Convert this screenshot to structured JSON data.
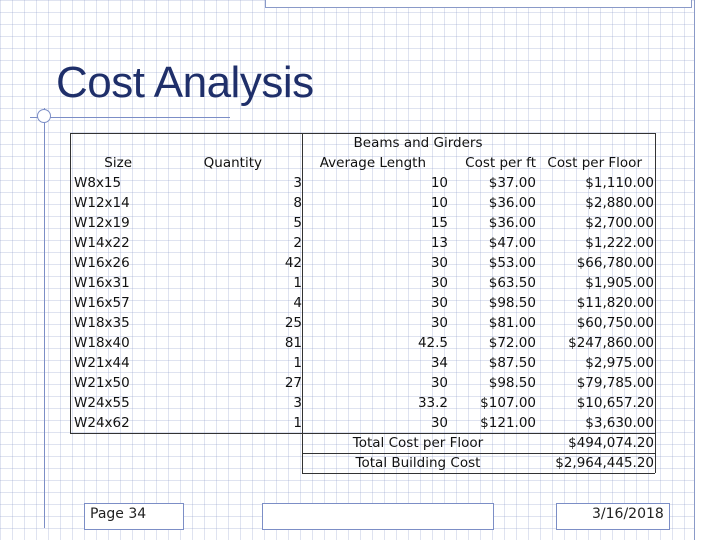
{
  "slide": {
    "title": "Cost Analysis",
    "page_label": "Page 34",
    "date": "3/16/2018"
  },
  "table": {
    "header": {
      "size": "Size",
      "quantity": "Quantity",
      "group": "Beams and Girders",
      "avg_length": "Average Length",
      "cost_per_ft": "Cost per ft",
      "cost_per_floor": "Cost per Floor"
    },
    "rows": [
      {
        "size": "W8x15",
        "qty": "3",
        "len": "10",
        "ft": "$37.00",
        "floor": "$1,110.00"
      },
      {
        "size": "W12x14",
        "qty": "8",
        "len": "10",
        "ft": "$36.00",
        "floor": "$2,880.00"
      },
      {
        "size": "W12x19",
        "qty": "5",
        "len": "15",
        "ft": "$36.00",
        "floor": "$2,700.00"
      },
      {
        "size": "W14x22",
        "qty": "2",
        "len": "13",
        "ft": "$47.00",
        "floor": "$1,222.00"
      },
      {
        "size": "W16x26",
        "qty": "42",
        "len": "30",
        "ft": "$53.00",
        "floor": "$66,780.00"
      },
      {
        "size": "W16x31",
        "qty": "1",
        "len": "30",
        "ft": "$63.50",
        "floor": "$1,905.00"
      },
      {
        "size": "W16x57",
        "qty": "4",
        "len": "30",
        "ft": "$98.50",
        "floor": "$11,820.00"
      },
      {
        "size": "W18x35",
        "qty": "25",
        "len": "30",
        "ft": "$81.00",
        "floor": "$60,750.00"
      },
      {
        "size": "W18x40",
        "qty": "81",
        "len": "42.5",
        "ft": "$72.00",
        "floor": "$247,860.00"
      },
      {
        "size": "W21x44",
        "qty": "1",
        "len": "34",
        "ft": "$87.50",
        "floor": "$2,975.00"
      },
      {
        "size": "W21x50",
        "qty": "27",
        "len": "30",
        "ft": "$98.50",
        "floor": "$79,785.00"
      },
      {
        "size": "W24x55",
        "qty": "3",
        "len": "33.2",
        "ft": "$107.00",
        "floor": "$10,657.20"
      },
      {
        "size": "W24x62",
        "qty": "1",
        "len": "30",
        "ft": "$121.00",
        "floor": "$3,630.00"
      }
    ],
    "totals": [
      {
        "label": "Total Cost per Floor",
        "value": "$494,074.20"
      },
      {
        "label": "Total Building Cost",
        "value": "$2,964,445.20"
      }
    ]
  }
}
